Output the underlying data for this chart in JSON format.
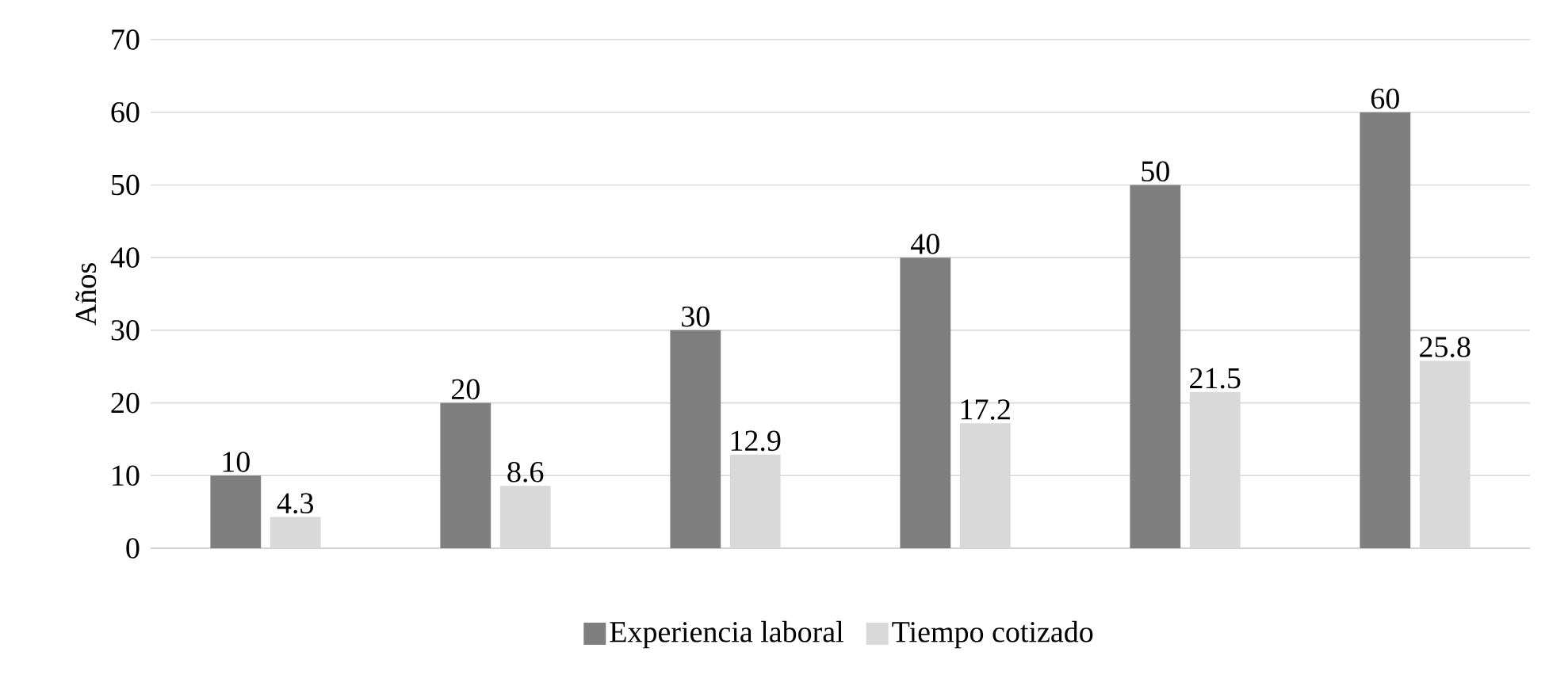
{
  "chart_data": {
    "type": "bar",
    "ylabel": "Años",
    "categories": [
      null,
      null,
      null,
      null,
      null,
      null
    ],
    "series": [
      {
        "name": "Experiencia laboral",
        "color": "#7f7f7f",
        "values": [
          10,
          20,
          30,
          40,
          50,
          60
        ]
      },
      {
        "name": "Tiempo cotizado",
        "color": "#d9d9d9",
        "values": [
          4.3,
          8.6,
          12.9,
          17.2,
          21.5,
          25.8
        ]
      }
    ],
    "ylim": [
      0,
      70
    ],
    "yticks": [
      0,
      10,
      20,
      30,
      40,
      50,
      60,
      70
    ],
    "grid": "y",
    "legend": "bottom",
    "data_labels": true
  }
}
